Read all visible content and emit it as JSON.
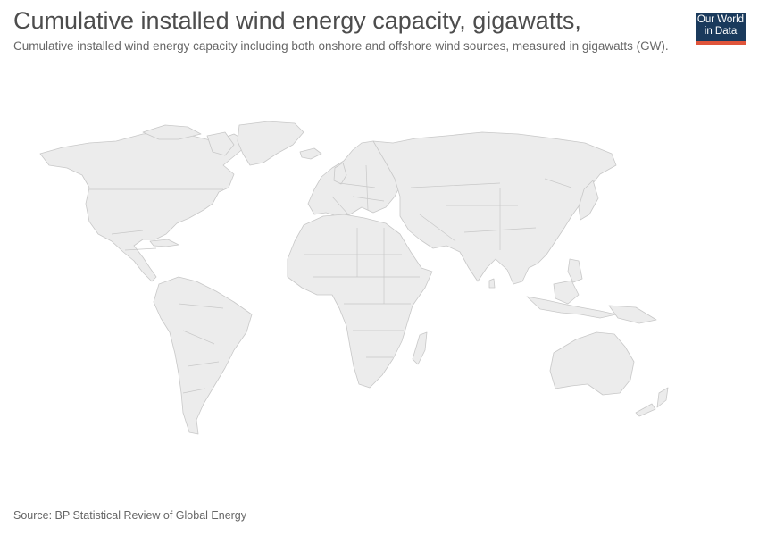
{
  "header": {
    "title": "Cumulative installed wind energy capacity, gigawatts,",
    "subtitle": "Cumulative installed wind energy capacity including both onshore and offshore wind sources, measured in gigawatts (GW)."
  },
  "logo": {
    "line1": "Our World",
    "line2": "in Data",
    "background": "#1a3a5c",
    "accent": "#e0553b"
  },
  "map": {
    "land_color": "#ececec",
    "border_color": "#c8c8c8"
  },
  "footer": {
    "source": "Source: BP Statistical Review of Global Energy"
  }
}
